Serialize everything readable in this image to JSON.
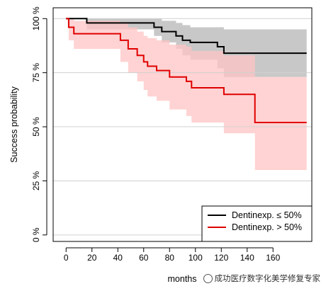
{
  "chart_data": {
    "type": "line",
    "subtype": "kaplan-meier step curves with confidence bands",
    "xlabel": "months",
    "ylabel": "Success probability",
    "xlim": [
      -10,
      190
    ],
    "ylim": [
      -0.03,
      1.05
    ],
    "x_ticks": [
      0,
      20,
      40,
      60,
      80,
      100,
      120,
      140,
      160
    ],
    "x_tick_labels": [
      "0",
      "20",
      "40",
      "60",
      "80",
      "100",
      "120",
      "140",
      "160"
    ],
    "y_ticks": [
      0,
      0.25,
      0.5,
      0.75,
      1.0
    ],
    "y_tick_labels": [
      "0 %",
      "25 %",
      "50 %",
      "75 %",
      "100 %"
    ],
    "grid": "horizontal",
    "legend_position": "bottom-right",
    "series": [
      {
        "name": "Dentinexp. ≤ 50%",
        "color": "#000000",
        "band_color": "#bebebe",
        "x": [
          0,
          16,
          68,
          74,
          85,
          90,
          96,
          117,
          122,
          186
        ],
        "y": [
          1.0,
          0.98,
          0.96,
          0.94,
          0.92,
          0.9,
          0.89,
          0.87,
          0.84,
          0.84
        ],
        "lower": [
          1.0,
          0.95,
          0.92,
          0.89,
          0.86,
          0.83,
          0.81,
          0.77,
          0.73,
          0.73
        ],
        "upper": [
          1.0,
          1.0,
          1.0,
          0.99,
          0.98,
          0.97,
          0.96,
          0.96,
          0.95,
          0.95
        ]
      },
      {
        "name": "Dentinexp. > 50%",
        "color": "#e00000",
        "band_color": "#ffc4c4",
        "x": [
          0,
          2,
          6,
          42,
          48,
          55,
          60,
          63,
          70,
          80,
          93,
          97,
          122,
          146,
          186
        ],
        "y": [
          1.0,
          0.96,
          0.93,
          0.9,
          0.86,
          0.83,
          0.8,
          0.78,
          0.76,
          0.73,
          0.71,
          0.68,
          0.65,
          0.52,
          0.52
        ],
        "lower": [
          1.0,
          0.9,
          0.86,
          0.8,
          0.75,
          0.71,
          0.67,
          0.64,
          0.62,
          0.58,
          0.55,
          0.52,
          0.47,
          0.3,
          0.3
        ],
        "upper": [
          1.0,
          1.0,
          0.99,
          0.98,
          0.96,
          0.94,
          0.92,
          0.91,
          0.9,
          0.88,
          0.87,
          0.85,
          0.83,
          0.73,
          0.73
        ]
      }
    ]
  },
  "watermark": "成功医疗数字化美学修复专家"
}
